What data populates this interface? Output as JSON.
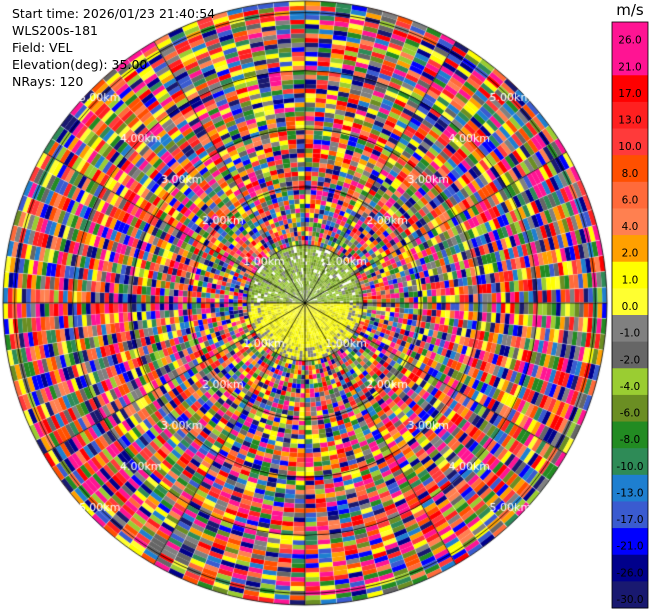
{
  "header": {
    "start_time": "Start time: 2026/01/23 21:40:54",
    "instrument": "WLS200s-181",
    "field": "Field: VEL",
    "elevation": "Elevation(deg): 35.00",
    "nrays": "NRays: 120"
  },
  "chart_data": {
    "type": "polar-scan",
    "field": "VEL",
    "units": "m/s",
    "n_rays": 120,
    "elevation_deg": 35.0,
    "range_rings_km": [
      1.0,
      2.0,
      3.0,
      4.0,
      5.0
    ],
    "range_ring_labels": [
      "1.00km",
      "2.00km",
      "3.00km",
      "4.00km",
      "5.00km"
    ],
    "max_range_km": 5.2,
    "azimuth_spokes_deg": [
      0,
      30,
      60,
      90,
      120,
      150,
      180,
      210,
      240,
      270,
      300,
      330
    ],
    "ring_label_azimuths_deg": [
      315,
      45,
      225,
      135
    ],
    "colorbar": {
      "title": "m/s",
      "tick_labels": [
        "26.0",
        "21.0",
        "17.0",
        "13.0",
        "10.0",
        "8.0",
        "6.0",
        "4.0",
        "2.0",
        "1.0",
        "0.0",
        "-1.0",
        "-2.0",
        "-4.0",
        "-6.0",
        "-8.0",
        "-10.0",
        "-13.0",
        "-17.0",
        "-21.0",
        "-26.0",
        "-30.0"
      ],
      "colors": [
        "#ff1493",
        "#ff1493",
        "#ff0000",
        "#ff2020",
        "#ff3a3a",
        "#ff5000",
        "#ff6a3a",
        "#ff8050",
        "#ffa000",
        "#ffff00",
        "#ffff30",
        "#808080",
        "#666666",
        "#9acd32",
        "#6b8e23",
        "#228b22",
        "#2e8b57",
        "#1e7fd0",
        "#3a5bd0",
        "#0000ff",
        "#00008b",
        "#191970"
      ]
    },
    "near_field": {
      "extent_km": 1.0,
      "north_half": "mixed green/grey low velocities",
      "south_half": "yellow positive velocities"
    }
  }
}
